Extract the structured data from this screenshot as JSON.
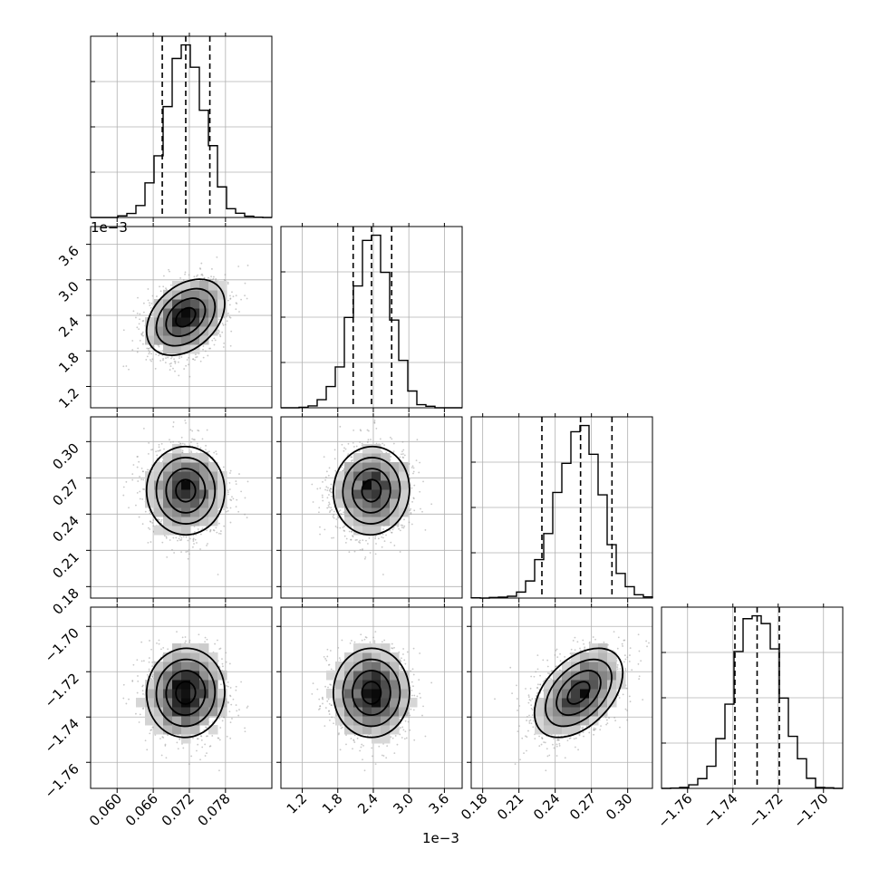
{
  "chart_data": {
    "type": "corner",
    "grid": true,
    "parameters": [
      {
        "range": [
          0.0556,
          0.0857
        ],
        "ticks": [
          0.06,
          0.066,
          0.072,
          0.078
        ],
        "tick_labels": [
          "0.060",
          "0.066",
          "0.072",
          "0.078"
        ],
        "offset_label": "",
        "quantiles": [
          0.0675,
          0.0714,
          0.0754
        ],
        "mean": 0.0714,
        "sd": 0.0032
      },
      {
        "range": [
          0.84,
          3.9
        ],
        "ticks": [
          1.2,
          1.8,
          2.4,
          3.0,
          3.6
        ],
        "tick_labels": [
          "1.2",
          "1.8",
          "2.4",
          "3.0",
          "3.6"
        ],
        "offset_label": "1e−3",
        "quantiles": [
          2.06,
          2.37,
          2.71
        ],
        "mean": 2.37,
        "sd": 0.32
      },
      {
        "range": [
          0.1705,
          0.3205
        ],
        "ticks": [
          0.18,
          0.21,
          0.24,
          0.27,
          0.3
        ],
        "tick_labels": [
          "0.18",
          "0.21",
          "0.24",
          "0.27",
          "0.30"
        ],
        "offset_label": "",
        "quantiles": [
          0.229,
          0.261,
          0.287
        ],
        "mean": 0.262,
        "sd": 0.025
      },
      {
        "range": [
          -1.7715,
          -1.6915
        ],
        "ticks": [
          -1.76,
          -1.74,
          -1.72,
          -1.7
        ],
        "tick_labels": [
          "−1.76",
          "−1.74",
          "−1.72",
          "−1.70"
        ],
        "offset_label": "",
        "quantiles": [
          -1.7391,
          -1.7293,
          -1.7195
        ],
        "mean": -1.7293,
        "sd": 0.0098
      }
    ],
    "y_offset_labels": [
      "",
      "1e−3",
      "",
      ""
    ],
    "x_offset_labels": [
      "",
      "1e−3",
      "",
      ""
    ],
    "correlations": [
      [
        1,
        0.35,
        -0.05,
        0.0
      ],
      [
        0.35,
        1,
        -0.05,
        0.0
      ],
      [
        -0.05,
        -0.05,
        1,
        0.55
      ],
      [
        0.0,
        0.0,
        0.55,
        1
      ]
    ]
  }
}
